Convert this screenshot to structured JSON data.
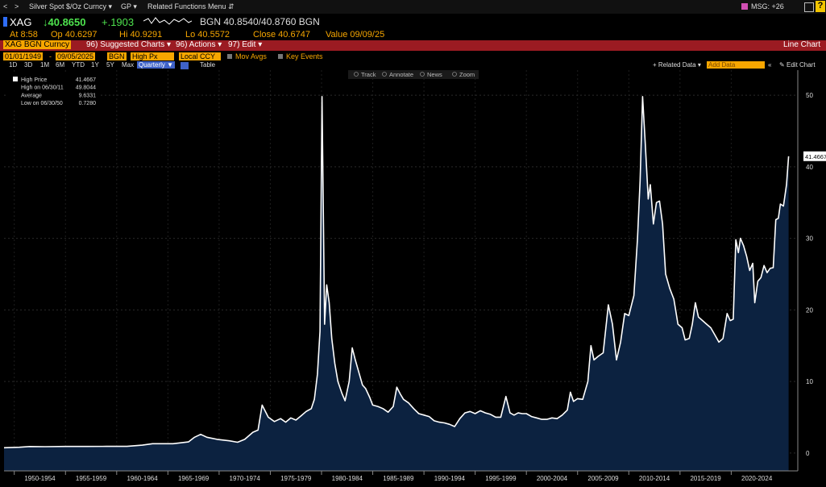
{
  "nav": {
    "back": "<",
    "fwd": ">",
    "security_menu": "Silver Spot $/Oz Curncy ▾",
    "gp_menu": "GP ▾",
    "related_menu": "Related Functions Menu ⇵",
    "msg": "MSG: +26"
  },
  "quote": {
    "ticker": "XAG",
    "last": "↓40.8650",
    "change": "+.1903",
    "bid_ask": "BGN 40.8540/40.8760 BGN"
  },
  "stats": {
    "at": "At 8:58",
    "op": "Op 40.6297",
    "hi": "Hi 40.9291",
    "lo": "Lo 40.5572",
    "close": "Close 40.6747",
    "value": "Value 09/09/25"
  },
  "toolbar": {
    "security": "XAG BGN Curncy",
    "suggested": "96) Suggested Charts ▾",
    "actions": "96) Actions ▾",
    "edit": "97) Edit ▾",
    "chart_type": "Line Chart"
  },
  "controls": {
    "start_date": "01/01/1949",
    "end_date": "09/05/2025",
    "source": "BGN",
    "field": "High Px",
    "currency": "Local CCY",
    "mov_avgs": "Mov Avgs",
    "key_events": "Key Events"
  },
  "periods": [
    "1D",
    "3D",
    "1M",
    "6M",
    "YTD",
    "1Y",
    "5Y",
    "Max"
  ],
  "frequency": "Quarterly ▼",
  "table_label": "Table",
  "related_data": "+ Related Data ▾",
  "add_data": "Add Data",
  "edit_chart": "Edit Chart",
  "chart_tools": [
    "Track",
    "Annotate",
    "News",
    "Zoom"
  ],
  "legend": {
    "title": "High Price",
    "title_value": "41.4667",
    "high_label": "High on 06/30/11",
    "high_value": "49.8044",
    "avg_label": "Average",
    "avg_value": "9.6331",
    "low_label": "Low on 06/30/50",
    "low_value": "0.7280"
  },
  "last_value_tag": "41.4667",
  "colors": {
    "area_fill": "#0c2240",
    "line": "#ffffff",
    "accent": "#f7a600",
    "red_bar": "#9b1b22",
    "up_green": "#4ee34e",
    "down_red": "#ff4d4d"
  },
  "chart_data": {
    "type": "area",
    "x_ticks": [
      "1950-1954",
      "1955-1959",
      "1960-1964",
      "1965-1969",
      "1970-1974",
      "1975-1979",
      "1980-1984",
      "1985-1989",
      "1990-1994",
      "1995-1999",
      "2000-2004",
      "2005-2009",
      "2010-2014",
      "2015-2019",
      "2020-2024"
    ],
    "y_ticks": [
      0,
      10,
      20,
      30,
      40,
      50
    ],
    "ylim": [
      -2.5,
      53.5
    ],
    "xlim": [
      1949.0,
      2026.5
    ],
    "series": [
      {
        "values": [
          [
            1949.0,
            0.73
          ],
          [
            1950.5,
            0.8
          ],
          [
            1951.5,
            0.9
          ],
          [
            1953,
            0.88
          ],
          [
            1955,
            0.91
          ],
          [
            1957,
            0.91
          ],
          [
            1959,
            0.92
          ],
          [
            1961,
            0.93
          ],
          [
            1962.5,
            1.1
          ],
          [
            1963.5,
            1.3
          ],
          [
            1965.5,
            1.3
          ],
          [
            1967.0,
            1.55
          ],
          [
            1967.6,
            2.2
          ],
          [
            1968.2,
            2.6
          ],
          [
            1968.8,
            2.2
          ],
          [
            1969.8,
            1.9
          ],
          [
            1971.0,
            1.7
          ],
          [
            1971.8,
            1.5
          ],
          [
            1972.5,
            1.9
          ],
          [
            1973.3,
            2.9
          ],
          [
            1973.8,
            3.2
          ],
          [
            1974.2,
            6.7
          ],
          [
            1974.8,
            5.0
          ],
          [
            1975.4,
            4.4
          ],
          [
            1976.0,
            4.8
          ],
          [
            1976.5,
            4.3
          ],
          [
            1977.0,
            4.9
          ],
          [
            1977.5,
            4.6
          ],
          [
            1978.0,
            5.2
          ],
          [
            1978.5,
            5.8
          ],
          [
            1979.0,
            6.2
          ],
          [
            1979.3,
            7.5
          ],
          [
            1979.6,
            11.0
          ],
          [
            1979.85,
            17.0
          ],
          [
            1980.05,
            49.8
          ],
          [
            1980.3,
            18.0
          ],
          [
            1980.5,
            23.5
          ],
          [
            1980.75,
            21.0
          ],
          [
            1981.0,
            16.0
          ],
          [
            1981.3,
            12.5
          ],
          [
            1981.6,
            10.0
          ],
          [
            1982.0,
            8.3
          ],
          [
            1982.3,
            7.3
          ],
          [
            1982.7,
            10.0
          ],
          [
            1983.0,
            14.7
          ],
          [
            1983.3,
            13.0
          ],
          [
            1983.7,
            11.0
          ],
          [
            1984.0,
            9.5
          ],
          [
            1984.3,
            9.0
          ],
          [
            1984.7,
            7.8
          ],
          [
            1985.0,
            6.7
          ],
          [
            1985.5,
            6.5
          ],
          [
            1986.0,
            6.2
          ],
          [
            1986.5,
            5.7
          ],
          [
            1987.0,
            6.5
          ],
          [
            1987.35,
            9.2
          ],
          [
            1987.7,
            8.2
          ],
          [
            1988.0,
            7.5
          ],
          [
            1988.5,
            7.0
          ],
          [
            1989.0,
            6.2
          ],
          [
            1989.5,
            5.5
          ],
          [
            1990.0,
            5.3
          ],
          [
            1990.5,
            5.1
          ],
          [
            1991.0,
            4.5
          ],
          [
            1991.5,
            4.3
          ],
          [
            1992.0,
            4.2
          ],
          [
            1992.5,
            4.0
          ],
          [
            1993.0,
            3.7
          ],
          [
            1993.5,
            4.8
          ],
          [
            1994.0,
            5.6
          ],
          [
            1994.5,
            5.8
          ],
          [
            1995.0,
            5.5
          ],
          [
            1995.5,
            5.9
          ],
          [
            1996.0,
            5.6
          ],
          [
            1996.5,
            5.4
          ],
          [
            1997.0,
            5.0
          ],
          [
            1997.5,
            5.0
          ],
          [
            1998.0,
            7.9
          ],
          [
            1998.4,
            5.6
          ],
          [
            1998.8,
            5.3
          ],
          [
            1999.2,
            5.6
          ],
          [
            1999.6,
            5.5
          ],
          [
            2000.0,
            5.5
          ],
          [
            2000.5,
            5.1
          ],
          [
            2001.0,
            4.9
          ],
          [
            2001.5,
            4.7
          ],
          [
            2002.0,
            4.7
          ],
          [
            2002.5,
            4.9
          ],
          [
            2003.0,
            4.8
          ],
          [
            2003.5,
            5.3
          ],
          [
            2004.0,
            6.0
          ],
          [
            2004.3,
            8.5
          ],
          [
            2004.6,
            7.2
          ],
          [
            2005.0,
            7.6
          ],
          [
            2005.5,
            7.5
          ],
          [
            2006.0,
            10.0
          ],
          [
            2006.3,
            15.0
          ],
          [
            2006.6,
            13.0
          ],
          [
            2007.0,
            13.5
          ],
          [
            2007.5,
            14.0
          ],
          [
            2008.0,
            20.7
          ],
          [
            2008.4,
            18.0
          ],
          [
            2008.8,
            13.0
          ],
          [
            2009.2,
            15.5
          ],
          [
            2009.6,
            19.5
          ],
          [
            2010.0,
            19.2
          ],
          [
            2010.5,
            22.0
          ],
          [
            2010.85,
            30.0
          ],
          [
            2011.1,
            38.0
          ],
          [
            2011.35,
            49.8
          ],
          [
            2011.6,
            43.5
          ],
          [
            2011.9,
            35.5
          ],
          [
            2012.1,
            37.5
          ],
          [
            2012.4,
            32.0
          ],
          [
            2012.7,
            35.0
          ],
          [
            2013.0,
            35.2
          ],
          [
            2013.3,
            32.0
          ],
          [
            2013.6,
            25.0
          ],
          [
            2014.0,
            23.0
          ],
          [
            2014.4,
            21.5
          ],
          [
            2014.8,
            18.0
          ],
          [
            2015.2,
            17.5
          ],
          [
            2015.5,
            15.8
          ],
          [
            2015.9,
            16.0
          ],
          [
            2016.2,
            18.0
          ],
          [
            2016.5,
            21.0
          ],
          [
            2016.8,
            19.0
          ],
          [
            2017.2,
            18.5
          ],
          [
            2017.6,
            18.0
          ],
          [
            2018.0,
            17.5
          ],
          [
            2018.4,
            16.5
          ],
          [
            2018.8,
            15.5
          ],
          [
            2019.2,
            16.0
          ],
          [
            2019.6,
            19.5
          ],
          [
            2019.9,
            18.5
          ],
          [
            2020.2,
            18.7
          ],
          [
            2020.45,
            29.8
          ],
          [
            2020.7,
            28.0
          ],
          [
            2020.9,
            30.0
          ],
          [
            2021.2,
            29.0
          ],
          [
            2021.5,
            27.5
          ],
          [
            2021.8,
            25.5
          ],
          [
            2022.1,
            26.5
          ],
          [
            2022.3,
            21.0
          ],
          [
            2022.6,
            24.0
          ],
          [
            2022.9,
            24.5
          ],
          [
            2023.2,
            26.2
          ],
          [
            2023.5,
            25.2
          ],
          [
            2023.8,
            25.8
          ],
          [
            2024.1,
            25.9
          ],
          [
            2024.35,
            32.6
          ],
          [
            2024.6,
            32.8
          ],
          [
            2024.8,
            34.8
          ],
          [
            2025.1,
            34.5
          ],
          [
            2025.4,
            37.5
          ],
          [
            2025.6,
            41.47
          ]
        ]
      }
    ]
  }
}
